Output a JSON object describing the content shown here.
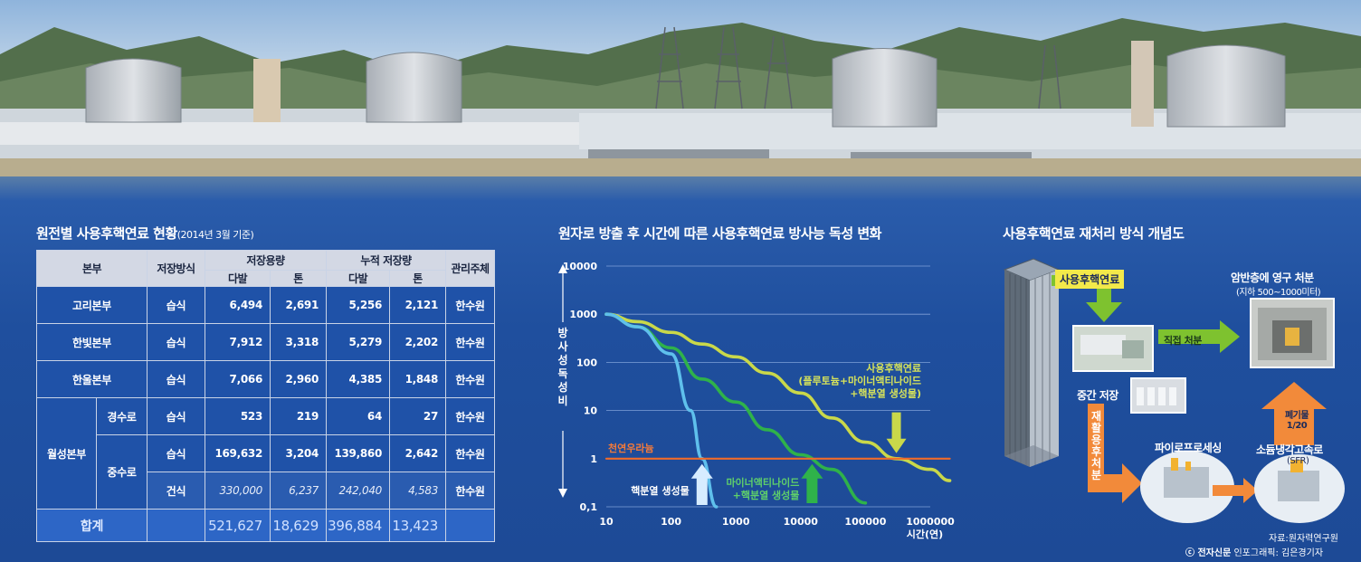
{
  "table_section": {
    "title": "원전별 사용후핵연료 현황",
    "title_sub": "(2014년 3월 기준)",
    "headers": {
      "hq": "본부",
      "method": "저장방식",
      "capacity": "저장용량",
      "accumulated": "누적 저장량",
      "manager": "관리주체",
      "bundle": "다발",
      "ton": "톤"
    },
    "rows": [
      {
        "hq": "고리본부",
        "method": "습식",
        "cap_bundle": "6,494",
        "cap_ton": "2,691",
        "acc_bundle": "5,256",
        "acc_ton": "2,121",
        "manager": "한수원"
      },
      {
        "hq": "한빛본부",
        "method": "습식",
        "cap_bundle": "7,912",
        "cap_ton": "3,318",
        "acc_bundle": "5,279",
        "acc_ton": "2,202",
        "manager": "한수원"
      },
      {
        "hq": "한울본부",
        "method": "습식",
        "cap_bundle": "7,066",
        "cap_ton": "2,960",
        "acc_bundle": "4,385",
        "acc_ton": "1,848",
        "manager": "한수원"
      }
    ],
    "wolsong": {
      "hq": "월성본부",
      "light_water": {
        "type": "경수로",
        "method": "습식",
        "cap_bundle": "523",
        "cap_ton": "219",
        "acc_bundle": "64",
        "acc_ton": "27",
        "manager": "한수원"
      },
      "heavy_water_label": "중수로",
      "heavy_wet": {
        "method": "습식",
        "cap_bundle": "169,632",
        "cap_ton": "3,204",
        "acc_bundle": "139,860",
        "acc_ton": "2,642",
        "manager": "한수원"
      },
      "heavy_dry": {
        "method": "건식",
        "cap_bundle": "330,000",
        "cap_ton": "6,237",
        "acc_bundle": "242,040",
        "acc_ton": "4,583",
        "manager": "한수원"
      }
    },
    "total": {
      "label": "합계",
      "cap_bundle": "521,627",
      "cap_ton": "18,629",
      "acc_bundle": "396,884",
      "acc_ton": "13,423"
    }
  },
  "chart_data": {
    "type": "line",
    "title": "원자로 방출 후 시간에 따른 사용후핵연료 방사능 독성 변화",
    "xlabel": "시간(연)",
    "ylabel": "방사성 독성비",
    "xscale": "log",
    "yscale": "log",
    "xlim": [
      10,
      1000000
    ],
    "ylim": [
      0.1,
      10000
    ],
    "x_ticks": [
      "10",
      "100",
      "1000",
      "10000",
      "100000",
      "1000000"
    ],
    "y_ticks": [
      "10000",
      "1000",
      "100",
      "10",
      "1",
      "0,1"
    ],
    "grid": true,
    "series": [
      {
        "name": "사용후핵연료 (플루토늄+마이너액티나이드+핵분열 생성물)",
        "color": "#c9d84a",
        "x": [
          10,
          30,
          100,
          300,
          1000,
          3000,
          10000,
          30000,
          100000,
          300000,
          1000000,
          2000000
        ],
        "y": [
          1000,
          700,
          420,
          240,
          130,
          60,
          23,
          7,
          2.2,
          1,
          0.6,
          0.35
        ]
      },
      {
        "name": "마이너액티나이드 +핵분열 생성물",
        "color": "#2fb24a",
        "x": [
          10,
          30,
          100,
          300,
          1000,
          3000,
          10000,
          30000,
          100000
        ],
        "y": [
          1000,
          550,
          200,
          45,
          15,
          4,
          1.2,
          0.6,
          0.12
        ]
      },
      {
        "name": "핵분열 생성물",
        "color": "#5fc0ec",
        "x": [
          10,
          30,
          100,
          200,
          300,
          500
        ],
        "y": [
          1000,
          550,
          150,
          10,
          1,
          0.1
        ]
      },
      {
        "name": "천연우라늄",
        "color": "#f06a2a",
        "x": [
          10,
          2000000
        ],
        "y": [
          1,
          1
        ]
      }
    ],
    "labels": {
      "natural_uranium": "천연우라늄",
      "fission_products": "핵분열 생성물",
      "minor_actinide_1": "마이너액티나이드",
      "minor_actinide_2": "+핵분열 생성물",
      "spent_fuel_1": "사용후핵연료",
      "spent_fuel_2": "(플루토늄+마이너액티나이드",
      "spent_fuel_3": "+핵분열 생성물)"
    }
  },
  "diagram": {
    "title": "사용후핵연료 재처리 방식 개념도",
    "spent_fuel": "사용후핵연료",
    "permanent_disposal": "암반층에 영구 처분",
    "permanent_disposal_sub": "(지하 500~1000미터)",
    "direct_disposal": "직접 처분",
    "interim_storage": "중간 저장",
    "recycle_disposal": "재활용후처분",
    "reduce": "폐기물 1/20",
    "pyroprocessing": "파이로프로세싱",
    "sfr": "소듐냉각고속로",
    "sfr_abbr": "(SFR)",
    "source": "자료:원자력연구원",
    "credit_brand": "ⓒ 전자신문",
    "credit_artist": "인포그래픽: 김은경기자",
    "colors": {
      "arrow_green": "#7ec22f",
      "arrow_orange": "#f28a3a",
      "tag_yellow": "#f3e94a"
    }
  }
}
